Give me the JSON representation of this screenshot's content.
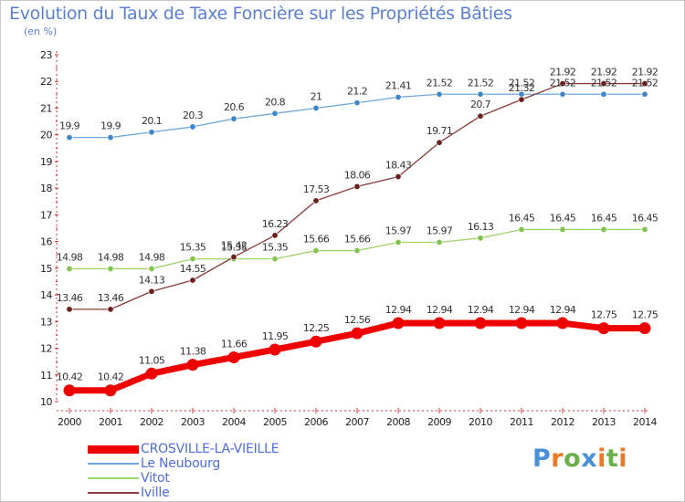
{
  "title": "Evolution du Taux de Taxe Foncière sur les Propriétés Bâties",
  "unit": "(en %)",
  "logo": {
    "text": "Proxiti",
    "colors": [
      "#4a8fd8",
      "#e87a28",
      "#6ab04c",
      "#4a8fd8",
      "#e87a28",
      "#6ab04c",
      "#e87a28"
    ]
  },
  "chart_data": {
    "type": "line",
    "title": "Evolution du Taux de Taxe Foncière sur les Propriétés Bâties",
    "ylabel": "(en %)",
    "xlabel": "",
    "x": [
      "2000",
      "2001",
      "2002",
      "2003",
      "2004",
      "2005",
      "2006",
      "2007",
      "2008",
      "2009",
      "2010",
      "2011",
      "2012",
      "2013",
      "2014"
    ],
    "ylim": [
      10,
      23
    ],
    "yticks": [
      "10",
      "11",
      "12",
      "13",
      "14",
      "15",
      "16",
      "17",
      "18",
      "19",
      "20",
      "21",
      "22",
      "23"
    ],
    "grid": false,
    "legend_position": "bottom-left",
    "series": [
      {
        "name": "CROSVILLE-LA-VIEILLE",
        "color": "#ee0000",
        "marker_color": "#ee0000",
        "emphasis": true,
        "values": [
          10.42,
          10.42,
          11.05,
          11.38,
          11.66,
          11.95,
          12.25,
          12.56,
          12.94,
          12.94,
          12.94,
          12.94,
          12.94,
          12.75,
          12.75
        ],
        "labels": [
          "10.42",
          "10.42",
          "11.05",
          "11.38",
          "11.66",
          "11.95",
          "12.25",
          "12.56",
          "12.94",
          "12.94",
          "12.94",
          "12.94",
          "12.94",
          "12.75",
          "12.75"
        ]
      },
      {
        "name": "Le Neubourg",
        "color": "#6fa7d8",
        "marker_color": "#3f86c9",
        "emphasis": false,
        "values": [
          19.9,
          19.9,
          20.1,
          20.3,
          20.6,
          20.8,
          21,
          21.2,
          21.41,
          21.52,
          21.52,
          21.52,
          21.52,
          21.52,
          21.52
        ],
        "labels": [
          "19.9",
          "19.9",
          "20.1",
          "20.3",
          "20.6",
          "20.8",
          "21",
          "21.2",
          "21.41",
          "21.52",
          "21.52",
          "21.52",
          "21.52",
          "21.52",
          "21.52"
        ]
      },
      {
        "name": "Vitot",
        "color": "#9fd46c",
        "marker_color": "#82c44d",
        "emphasis": false,
        "values": [
          14.98,
          14.98,
          14.98,
          15.35,
          15.35,
          15.35,
          15.66,
          15.66,
          15.97,
          15.97,
          16.13,
          16.45,
          16.45,
          16.45,
          16.45
        ],
        "labels": [
          "14.98",
          "14.98",
          "14.98",
          "15.35",
          "15.35",
          "15.35",
          "15.66",
          "15.66",
          "15.97",
          "15.97",
          "16.13",
          "16.45",
          "16.45",
          "16.45",
          "16.45"
        ]
      },
      {
        "name": "Iville",
        "color": "#8a3a3a",
        "marker_color": "#6b1f1f",
        "emphasis": false,
        "values": [
          13.46,
          13.46,
          14.13,
          14.55,
          15.42,
          16.23,
          17.53,
          18.06,
          18.43,
          19.71,
          20.7,
          21.32,
          21.92,
          21.92,
          21.92
        ],
        "labels": [
          "13.46",
          "13.46",
          "14.13",
          "14.55",
          "15.42",
          "16.23",
          "17.53",
          "18.06",
          "18.43",
          "19.71",
          "20.7",
          "21.32",
          "21.92",
          "21.92",
          "21.92"
        ]
      }
    ]
  }
}
